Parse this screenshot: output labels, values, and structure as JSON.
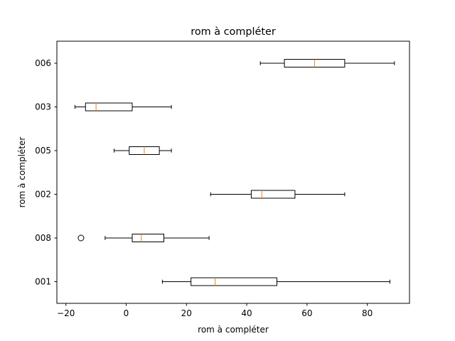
{
  "chart_data": {
    "type": "boxplot",
    "orientation": "horizontal",
    "title": "rom à compléter",
    "xlabel": "rom à compléter",
    "ylabel": "rom à compléter",
    "xlim": [
      -23,
      94
    ],
    "xticks": [
      -20,
      0,
      20,
      40,
      60,
      80
    ],
    "xtick_labels": [
      "−20",
      "0",
      "20",
      "40",
      "60",
      "80"
    ],
    "grid": false,
    "categories": [
      "001",
      "008",
      "002",
      "005",
      "003",
      "006"
    ],
    "boxes": [
      {
        "label": "001",
        "whislo": 12,
        "q1": 21.5,
        "med": 29.5,
        "q3": 50,
        "whishi": 87.5,
        "fliers": []
      },
      {
        "label": "008",
        "whislo": -7,
        "q1": 2,
        "med": 5,
        "q3": 12.5,
        "whishi": 27.5,
        "fliers": [
          -15
        ]
      },
      {
        "label": "002",
        "whislo": 28,
        "q1": 41.5,
        "med": 45,
        "q3": 56,
        "whishi": 72.5,
        "fliers": []
      },
      {
        "label": "005",
        "whislo": -4,
        "q1": 1,
        "med": 6,
        "q3": 11,
        "whishi": 15,
        "fliers": []
      },
      {
        "label": "003",
        "whislo": -17,
        "q1": -13.5,
        "med": -10,
        "q3": 2,
        "whishi": 15,
        "fliers": []
      },
      {
        "label": "006",
        "whislo": 44.5,
        "q1": 52.5,
        "med": 62.5,
        "q3": 72.5,
        "whishi": 89,
        "fliers": []
      }
    ],
    "colors": {
      "box": "#000000",
      "median": "#ff7f0e",
      "whisker": "#000000",
      "flier": "#000000",
      "background": "#ffffff"
    }
  }
}
